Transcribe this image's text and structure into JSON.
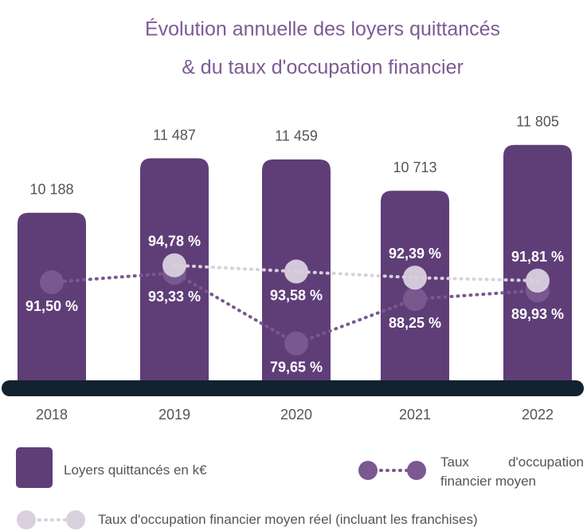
{
  "chart_data": {
    "type": "bar",
    "title": [
      "Évolution annuelle des loyers quittancés",
      "& du taux d'occupation financier"
    ],
    "categories": [
      "2018",
      "2019",
      "2020",
      "2021",
      "2022"
    ],
    "series": [
      {
        "name": "Loyers quittancés en k€",
        "type": "bar",
        "color": "#5f3e78",
        "values": [
          10188,
          11487,
          11459,
          10713,
          11805
        ],
        "value_labels": [
          "10 188",
          "11 487",
          "11 459",
          "10 713",
          "11 805"
        ]
      },
      {
        "name": "Taux d'occupation financier moyen",
        "type": "line",
        "axis": "y2",
        "color": "#7a5890",
        "values": [
          91.5,
          93.33,
          79.65,
          88.25,
          89.93
        ],
        "value_labels": [
          "91,50 %",
          "93,33 %",
          "79,65 %",
          "88,25 %",
          "89,93 %"
        ]
      },
      {
        "name": "Taux d'occupation financier moyen réel (incluant les franchises)",
        "type": "line",
        "axis": "y2",
        "color": "#d9d0de",
        "values": [
          null,
          94.78,
          93.58,
          92.39,
          91.81
        ],
        "value_labels": [
          null,
          "94,78 %",
          "93,58 %",
          "92,39 %",
          "91,81 %"
        ]
      }
    ],
    "ylim": [
      6000,
      12600
    ],
    "y2lim": [
      71,
      124.5
    ]
  }
}
